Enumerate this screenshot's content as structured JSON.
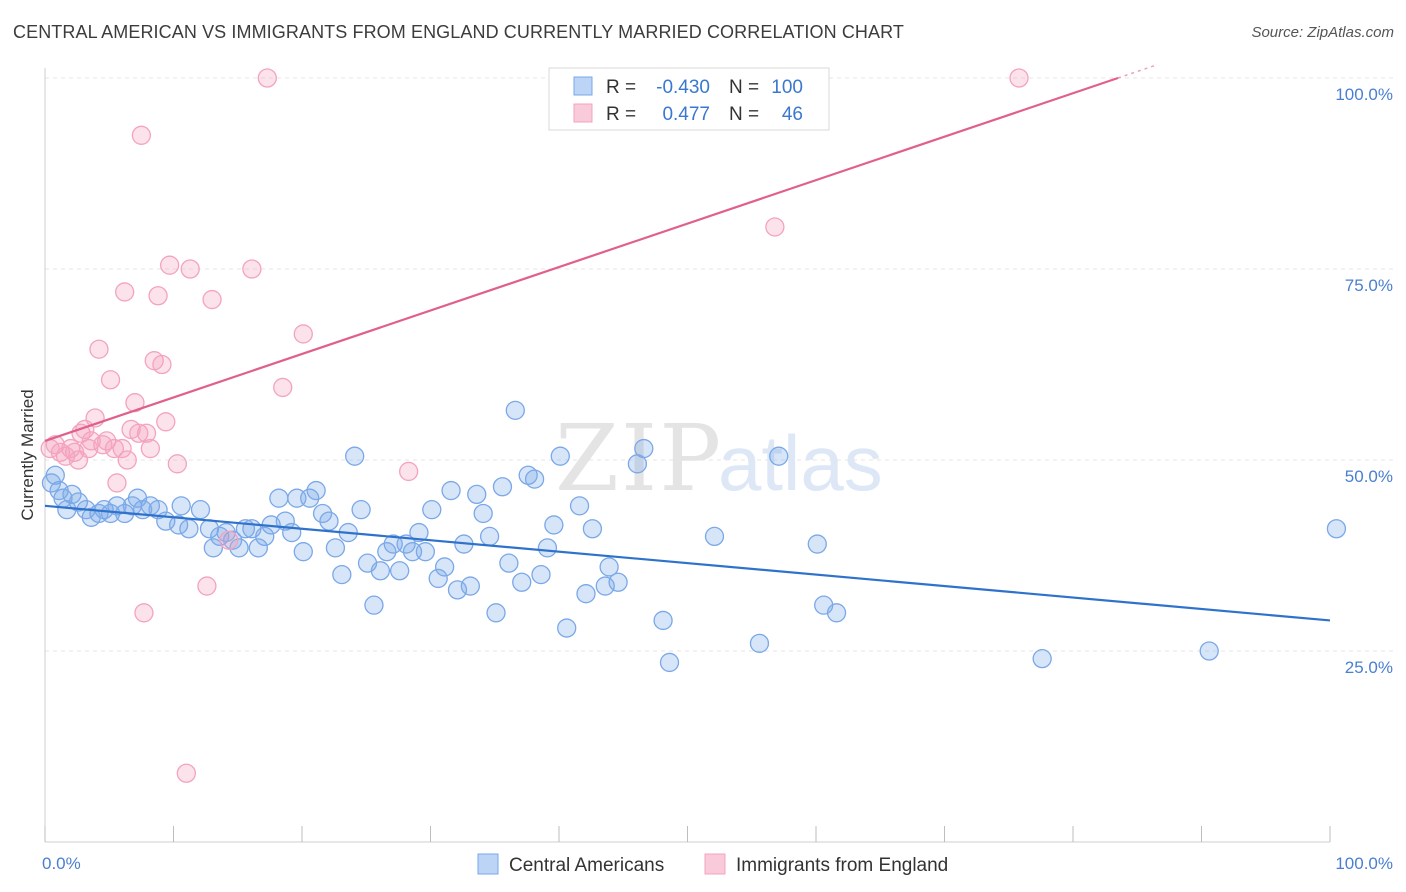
{
  "title": "CENTRAL AMERICAN VS IMMIGRANTS FROM ENGLAND CURRENTLY MARRIED CORRELATION CHART",
  "source": "Source: ZipAtlas.com",
  "watermark": {
    "zip": "ZIP",
    "atlas": "atlas"
  },
  "chart_data": {
    "type": "scatter",
    "title": "CENTRAL AMERICAN VS IMMIGRANTS FROM ENGLAND CURRENTLY MARRIED CORRELATION CHART",
    "xlabel": "",
    "ylabel": "Currently Married",
    "xlim": [
      0,
      100
    ],
    "ylim": [
      0,
      102
    ],
    "x_tick_labels": {
      "left": "0.0%",
      "right": "100.0%"
    },
    "y_ticks": [
      {
        "value": 25,
        "label": "25.0%"
      },
      {
        "value": 50,
        "label": "50.0%"
      },
      {
        "value": 75,
        "label": "75.0%"
      },
      {
        "value": 100,
        "label": "100.0%"
      }
    ],
    "grid": true,
    "legend_placement": "top-center",
    "stats": [
      {
        "r_label": "R =",
        "r_value": "-0.430",
        "n_label": "N =",
        "n_value": "100"
      },
      {
        "r_label": "R =",
        "r_value": "0.477",
        "n_label": "N =",
        "n_value": "46"
      }
    ],
    "series": [
      {
        "name": "Central Americans",
        "color": "#7aa8e8",
        "line_color": "#2f72cc",
        "trend": {
          "x0": 0,
          "y0": 44.0,
          "x1": 100,
          "y1": 29.0
        },
        "points": [
          [
            0.5,
            47
          ],
          [
            0.8,
            48
          ],
          [
            1.1,
            46
          ],
          [
            1.4,
            45
          ],
          [
            1.7,
            43.5
          ],
          [
            2.1,
            45.5
          ],
          [
            2.6,
            44.5
          ],
          [
            3.2,
            43.5
          ],
          [
            3.6,
            42.5
          ],
          [
            4.2,
            43
          ],
          [
            4.6,
            43.5
          ],
          [
            5.1,
            43
          ],
          [
            5.6,
            44
          ],
          [
            6.2,
            43
          ],
          [
            6.8,
            44
          ],
          [
            7.2,
            45
          ],
          [
            7.6,
            43.5
          ],
          [
            8.8,
            43.5
          ],
          [
            8.2,
            44
          ],
          [
            9.4,
            42
          ],
          [
            10.4,
            41.5
          ],
          [
            10.6,
            44
          ],
          [
            11.2,
            41
          ],
          [
            12.1,
            43.5
          ],
          [
            12.8,
            41
          ],
          [
            13.1,
            38.5
          ],
          [
            13.6,
            40
          ],
          [
            14.1,
            40.5
          ],
          [
            14.6,
            39.5
          ],
          [
            15.1,
            38.5
          ],
          [
            15.6,
            41
          ],
          [
            16.1,
            41
          ],
          [
            16.6,
            38.5
          ],
          [
            17.1,
            40
          ],
          [
            17.6,
            41.5
          ],
          [
            18.2,
            45
          ],
          [
            18.7,
            42
          ],
          [
            19.2,
            40.5
          ],
          [
            19.6,
            45
          ],
          [
            20.1,
            38
          ],
          [
            20.6,
            45
          ],
          [
            21.1,
            46
          ],
          [
            21.6,
            43
          ],
          [
            22.1,
            42
          ],
          [
            22.6,
            38.5
          ],
          [
            23.1,
            35
          ],
          [
            23.6,
            40.5
          ],
          [
            24.1,
            50.5
          ],
          [
            24.6,
            43.5
          ],
          [
            25.1,
            36.5
          ],
          [
            25.6,
            31
          ],
          [
            26.1,
            35.5
          ],
          [
            26.6,
            38
          ],
          [
            27.1,
            39
          ],
          [
            27.6,
            35.5
          ],
          [
            28.1,
            39
          ],
          [
            28.6,
            38
          ],
          [
            29.1,
            40.5
          ],
          [
            29.6,
            38
          ],
          [
            30.1,
            43.5
          ],
          [
            30.6,
            34.5
          ],
          [
            31.1,
            36
          ],
          [
            31.6,
            46
          ],
          [
            32.1,
            33
          ],
          [
            32.6,
            39
          ],
          [
            33.1,
            33.5
          ],
          [
            33.6,
            45.5
          ],
          [
            34.1,
            43
          ],
          [
            34.6,
            40
          ],
          [
            35.1,
            30
          ],
          [
            35.6,
            46.5
          ],
          [
            36.1,
            36.5
          ],
          [
            36.6,
            56.5
          ],
          [
            37.1,
            34
          ],
          [
            37.6,
            48
          ],
          [
            38.1,
            47.5
          ],
          [
            38.6,
            35
          ],
          [
            39.1,
            38.5
          ],
          [
            39.6,
            41.5
          ],
          [
            40.1,
            50.5
          ],
          [
            40.6,
            28
          ],
          [
            41.6,
            44
          ],
          [
            42.1,
            32.5
          ],
          [
            42.6,
            41
          ],
          [
            43.6,
            33.5
          ],
          [
            43.9,
            36
          ],
          [
            44.6,
            34
          ],
          [
            46.1,
            49.5
          ],
          [
            46.6,
            51.5
          ],
          [
            48.1,
            29
          ],
          [
            48.6,
            23.5
          ],
          [
            52.1,
            40
          ],
          [
            55.6,
            26
          ],
          [
            57.1,
            50.5
          ],
          [
            60.1,
            39
          ],
          [
            60.6,
            31
          ],
          [
            61.6,
            30
          ],
          [
            77.6,
            24
          ],
          [
            90.6,
            25
          ],
          [
            100.5,
            41
          ]
        ]
      },
      {
        "name": "Immigrants from England",
        "color": "#f4a3bd",
        "line_color": "#e0608a",
        "trend": {
          "x0": 0,
          "y0": 52.5,
          "x1": 83.5,
          "y1": 100.0
        },
        "points": [
          [
            0.4,
            51.5
          ],
          [
            0.8,
            52
          ],
          [
            1.2,
            51
          ],
          [
            1.6,
            50.5
          ],
          [
            2.0,
            51.5
          ],
          [
            2.3,
            51
          ],
          [
            2.6,
            50
          ],
          [
            2.8,
            53.5
          ],
          [
            3.1,
            54
          ],
          [
            3.4,
            51.5
          ],
          [
            3.6,
            52.5
          ],
          [
            3.9,
            55.5
          ],
          [
            4.2,
            64.5
          ],
          [
            4.5,
            52
          ],
          [
            4.8,
            52.5
          ],
          [
            5.1,
            60.5
          ],
          [
            5.4,
            51.5
          ],
          [
            5.6,
            47
          ],
          [
            6.0,
            51.5
          ],
          [
            6.2,
            72
          ],
          [
            6.4,
            50
          ],
          [
            6.7,
            54
          ],
          [
            7.0,
            57.5
          ],
          [
            7.3,
            53.5
          ],
          [
            7.5,
            92.5
          ],
          [
            7.7,
            30
          ],
          [
            7.9,
            53.5
          ],
          [
            8.2,
            51.5
          ],
          [
            8.5,
            63
          ],
          [
            8.8,
            71.5
          ],
          [
            9.1,
            62.5
          ],
          [
            9.4,
            55
          ],
          [
            9.7,
            75.5
          ],
          [
            10.3,
            49.5
          ],
          [
            11.0,
            9
          ],
          [
            11.3,
            75
          ],
          [
            12.6,
            33.5
          ],
          [
            13.0,
            71
          ],
          [
            14.3,
            39.5
          ],
          [
            16.1,
            75
          ],
          [
            17.3,
            100
          ],
          [
            18.5,
            59.5
          ],
          [
            20.1,
            66.5
          ],
          [
            28.3,
            48.5
          ],
          [
            56.8,
            80.5
          ],
          [
            75.8,
            100
          ]
        ]
      }
    ]
  }
}
